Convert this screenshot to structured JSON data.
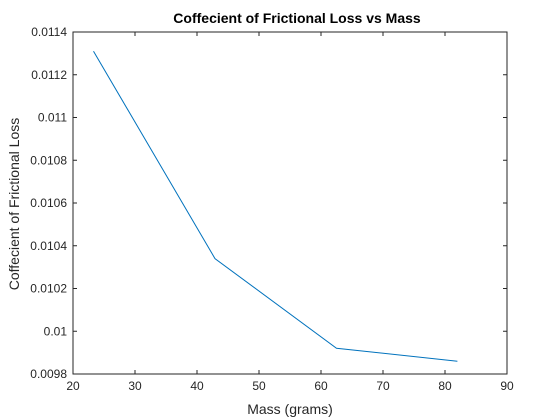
{
  "chart_data": {
    "type": "line",
    "title": "Coffecient of Frictional Loss vs Mass",
    "xlabel": "Mass (grams)",
    "ylabel": "Coffecient of Frictional Loss",
    "xlim": [
      20,
      90
    ],
    "ylim": [
      0.0098,
      0.0114
    ],
    "x_ticks": [
      20,
      30,
      40,
      50,
      60,
      70,
      80,
      90
    ],
    "x_tick_labels": [
      "20",
      "30",
      "40",
      "50",
      "60",
      "70",
      "80",
      "90"
    ],
    "y_ticks": [
      0.0098,
      0.01,
      0.0102,
      0.0104,
      0.0106,
      0.0108,
      0.011,
      0.0112,
      0.0114
    ],
    "y_tick_labels": [
      "0.0098",
      "0.01",
      "0.0102",
      "0.0104",
      "0.0106",
      "0.0108",
      "0.011",
      "0.0112",
      "0.0114"
    ],
    "grid": false,
    "series": [
      {
        "color": "#0072BD",
        "x": [
          23.3,
          42.9,
          62.5,
          82.0
        ],
        "y": [
          0.01131,
          0.01034,
          0.00992,
          0.00986
        ]
      }
    ]
  }
}
